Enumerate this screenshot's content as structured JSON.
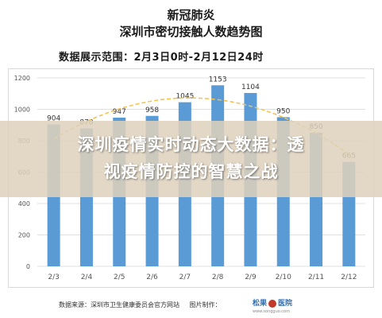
{
  "header": {
    "line1": "新冠肺炎",
    "line2": "深圳市密切接触人数趋势图",
    "range": "数据展示范围：2月3日0时-2月12日24时"
  },
  "overlay": {
    "line1": "深圳疫情实时动态大数据：透",
    "line2": "视疫情防控的智慧之战"
  },
  "footer": {
    "source": "数据来源：深圳市卫生健康委员会官方网站",
    "production": "图片制作：",
    "logo_left": "松果",
    "logo_right": "医院",
    "logo_sub": "www.songguo.com"
  },
  "colors": {
    "bar": "#5b9bd5",
    "trend": "#f2c14e",
    "grid": "#e0e0e0"
  },
  "chart_data": {
    "type": "bar",
    "categories": [
      "2/3",
      "2/4",
      "2/5",
      "2/6",
      "2/7",
      "2/8",
      "2/9",
      "2/10",
      "2/11",
      "2/12"
    ],
    "values": [
      904,
      878,
      947,
      958,
      1045,
      1153,
      1104,
      950,
      850,
      665
    ],
    "ylim": [
      0,
      1200
    ],
    "yticks": [
      0,
      200,
      400,
      600,
      800,
      1000,
      1200
    ],
    "grid": true,
    "trendline": "dashed polynomial"
  }
}
